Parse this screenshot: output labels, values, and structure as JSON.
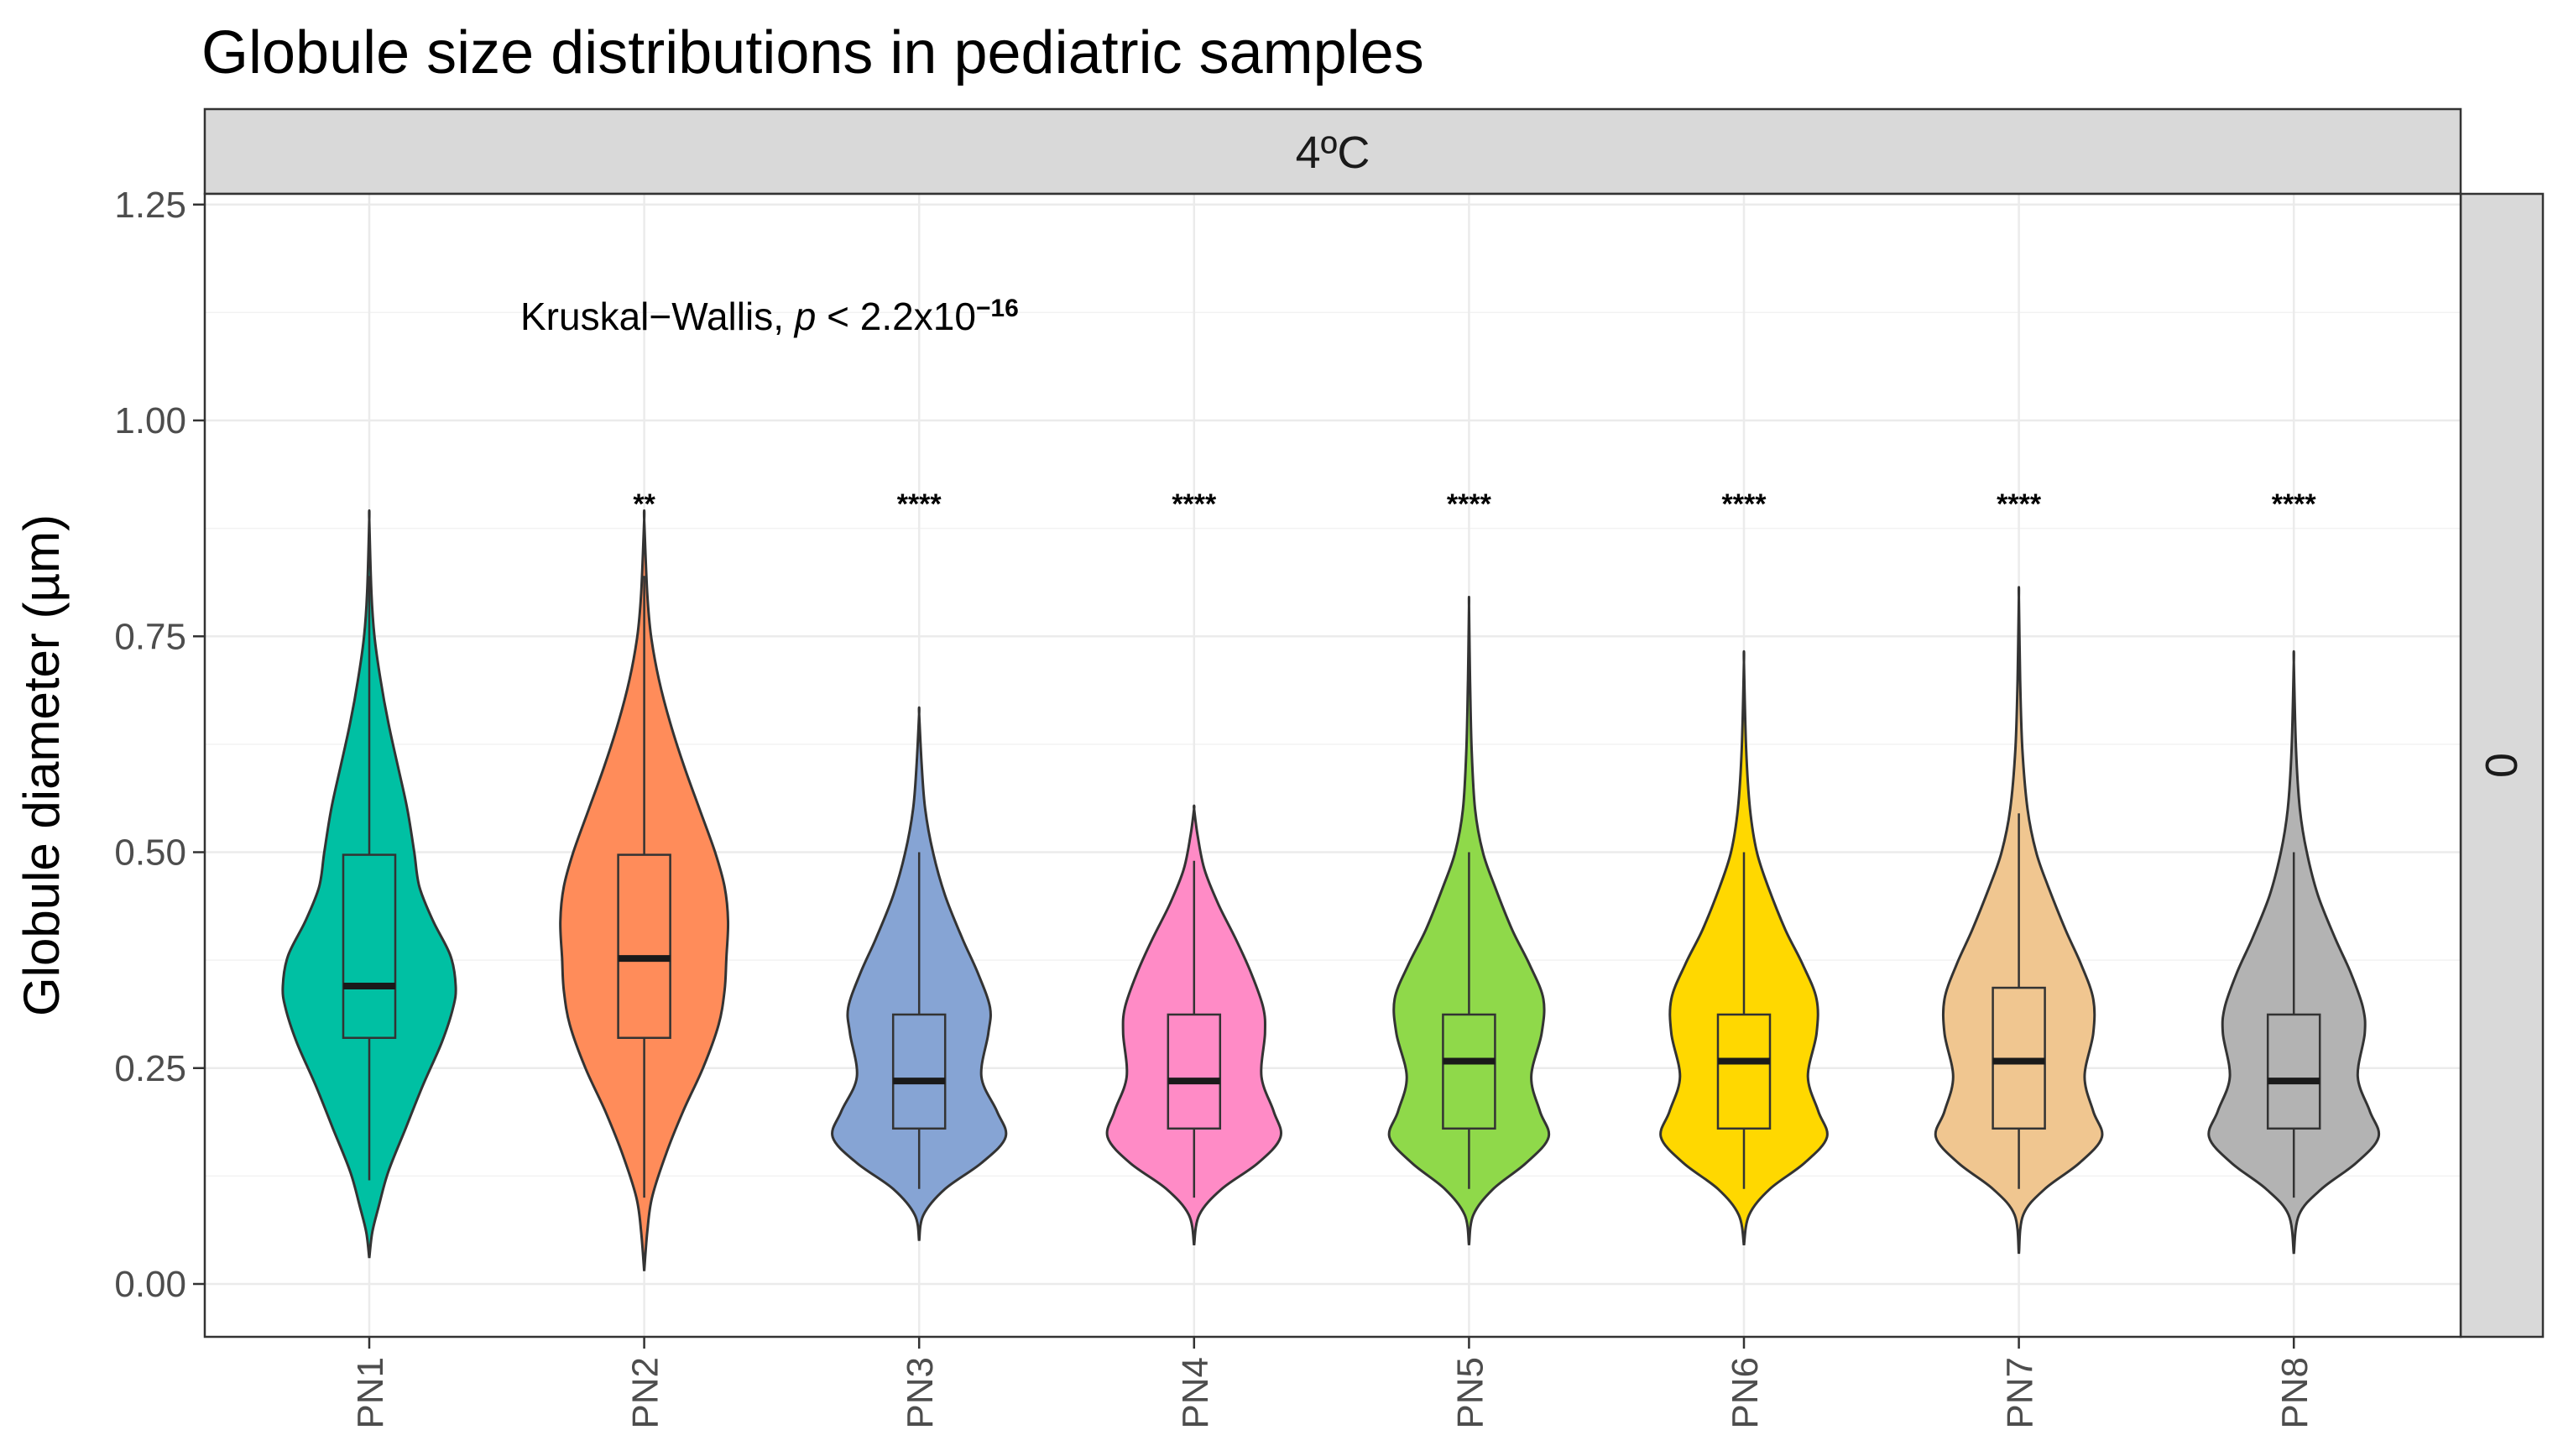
{
  "chart_data": {
    "type": "violin",
    "title": "Globule size distributions in pediatric samples",
    "ylabel": "Globule diameter (µm)",
    "xlabel": "",
    "ylim": [
      -0.055,
      1.25
    ],
    "yticks": [
      0.0,
      0.25,
      0.5,
      0.75,
      1.0,
      1.25
    ],
    "ytick_labels": [
      "0.00",
      "0.25",
      "0.50",
      "0.75",
      "1.00",
      "1.25"
    ],
    "facet_top": "4ºC",
    "facet_right": "0",
    "annotation": {
      "prefix": "Kruskal−Wallis, ",
      "p_symbol": "p",
      "middle": " < 2.2x10",
      "exponent": "−16"
    },
    "categories": [
      "PN1",
      "PN2",
      "PN3",
      "PN4",
      "PN5",
      "PN6",
      "PN7",
      "PN8"
    ],
    "series": [
      {
        "name": "PN1",
        "color": "#00C0A3",
        "significance": "",
        "min": 0.03,
        "max": 0.885,
        "box_low": 0.285,
        "median": 0.345,
        "box_high": 0.497,
        "whisker_low": 0.12,
        "whisker_high": 0.82,
        "profile": [
          [
            0.03,
            0.0
          ],
          [
            0.06,
            0.035
          ],
          [
            0.09,
            0.11
          ],
          [
            0.13,
            0.22
          ],
          [
            0.18,
            0.42
          ],
          [
            0.23,
            0.62
          ],
          [
            0.28,
            0.84
          ],
          [
            0.32,
            0.97
          ],
          [
            0.345,
            1.0
          ],
          [
            0.38,
            0.94
          ],
          [
            0.42,
            0.74
          ],
          [
            0.46,
            0.58
          ],
          [
            0.5,
            0.52
          ],
          [
            0.55,
            0.44
          ],
          [
            0.6,
            0.33
          ],
          [
            0.65,
            0.22
          ],
          [
            0.7,
            0.13
          ],
          [
            0.75,
            0.06
          ],
          [
            0.8,
            0.025
          ],
          [
            0.885,
            0.0
          ]
        ]
      },
      {
        "name": "PN2",
        "color": "#FF8C5A",
        "significance": "**",
        "min": 0.015,
        "max": 0.885,
        "box_low": 0.285,
        "median": 0.377,
        "box_high": 0.497,
        "whisker_low": 0.1,
        "whisker_high": 0.82,
        "profile": [
          [
            0.015,
            0.0
          ],
          [
            0.06,
            0.035
          ],
          [
            0.1,
            0.09
          ],
          [
            0.15,
            0.25
          ],
          [
            0.2,
            0.45
          ],
          [
            0.25,
            0.68
          ],
          [
            0.3,
            0.86
          ],
          [
            0.34,
            0.93
          ],
          [
            0.377,
            0.95
          ],
          [
            0.42,
            0.97
          ],
          [
            0.46,
            0.93
          ],
          [
            0.5,
            0.82
          ],
          [
            0.55,
            0.64
          ],
          [
            0.6,
            0.46
          ],
          [
            0.65,
            0.3
          ],
          [
            0.7,
            0.17
          ],
          [
            0.75,
            0.08
          ],
          [
            0.8,
            0.035
          ],
          [
            0.885,
            0.0
          ]
        ]
      },
      {
        "name": "PN3",
        "color": "#86A4D4",
        "significance": "****",
        "min": 0.05,
        "max": 0.66,
        "box_low": 0.18,
        "median": 0.235,
        "box_high": 0.312,
        "whisker_low": 0.11,
        "whisker_high": 0.5,
        "profile": [
          [
            0.05,
            0.0
          ],
          [
            0.08,
            0.05
          ],
          [
            0.11,
            0.3
          ],
          [
            0.14,
            0.72
          ],
          [
            0.17,
            1.0
          ],
          [
            0.2,
            0.9
          ],
          [
            0.24,
            0.72
          ],
          [
            0.29,
            0.8
          ],
          [
            0.32,
            0.82
          ],
          [
            0.36,
            0.68
          ],
          [
            0.4,
            0.5
          ],
          [
            0.45,
            0.3
          ],
          [
            0.5,
            0.16
          ],
          [
            0.55,
            0.07
          ],
          [
            0.6,
            0.03
          ],
          [
            0.66,
            0.0
          ]
        ]
      },
      {
        "name": "PN4",
        "color": "#FF8BC6",
        "significance": "****",
        "min": 0.045,
        "max": 0.55,
        "box_low": 0.18,
        "median": 0.235,
        "box_high": 0.312,
        "whisker_low": 0.1,
        "whisker_high": 0.49,
        "profile": [
          [
            0.045,
            0.0
          ],
          [
            0.08,
            0.06
          ],
          [
            0.11,
            0.32
          ],
          [
            0.14,
            0.74
          ],
          [
            0.17,
            1.0
          ],
          [
            0.2,
            0.92
          ],
          [
            0.24,
            0.78
          ],
          [
            0.29,
            0.82
          ],
          [
            0.32,
            0.8
          ],
          [
            0.36,
            0.66
          ],
          [
            0.4,
            0.48
          ],
          [
            0.44,
            0.28
          ],
          [
            0.48,
            0.12
          ],
          [
            0.52,
            0.04
          ],
          [
            0.55,
            0.0
          ]
        ]
      },
      {
        "name": "PN5",
        "color": "#8FD94A",
        "significance": "****",
        "min": 0.045,
        "max": 0.785,
        "box_low": 0.18,
        "median": 0.258,
        "box_high": 0.312,
        "whisker_low": 0.11,
        "whisker_high": 0.5,
        "profile": [
          [
            0.045,
            0.0
          ],
          [
            0.08,
            0.05
          ],
          [
            0.11,
            0.28
          ],
          [
            0.14,
            0.66
          ],
          [
            0.17,
            0.92
          ],
          [
            0.2,
            0.82
          ],
          [
            0.24,
            0.72
          ],
          [
            0.29,
            0.84
          ],
          [
            0.33,
            0.86
          ],
          [
            0.37,
            0.7
          ],
          [
            0.41,
            0.5
          ],
          [
            0.46,
            0.3
          ],
          [
            0.5,
            0.16
          ],
          [
            0.55,
            0.07
          ],
          [
            0.62,
            0.03
          ],
          [
            0.7,
            0.012
          ],
          [
            0.785,
            0.0
          ]
        ]
      },
      {
        "name": "PN6",
        "color": "#FFD800",
        "significance": "****",
        "min": 0.045,
        "max": 0.72,
        "box_low": 0.18,
        "median": 0.258,
        "box_high": 0.312,
        "whisker_low": 0.11,
        "whisker_high": 0.5,
        "profile": [
          [
            0.045,
            0.0
          ],
          [
            0.08,
            0.06
          ],
          [
            0.11,
            0.3
          ],
          [
            0.14,
            0.7
          ],
          [
            0.17,
            0.96
          ],
          [
            0.2,
            0.86
          ],
          [
            0.24,
            0.74
          ],
          [
            0.29,
            0.84
          ],
          [
            0.33,
            0.84
          ],
          [
            0.37,
            0.68
          ],
          [
            0.41,
            0.48
          ],
          [
            0.46,
            0.28
          ],
          [
            0.5,
            0.15
          ],
          [
            0.55,
            0.07
          ],
          [
            0.62,
            0.025
          ],
          [
            0.72,
            0.0
          ]
        ]
      },
      {
        "name": "PN7",
        "color": "#F0C690",
        "significance": "****",
        "min": 0.035,
        "max": 0.795,
        "box_low": 0.18,
        "median": 0.258,
        "box_high": 0.343,
        "whisker_low": 0.11,
        "whisker_high": 0.545,
        "profile": [
          [
            0.035,
            0.0
          ],
          [
            0.08,
            0.05
          ],
          [
            0.11,
            0.3
          ],
          [
            0.14,
            0.7
          ],
          [
            0.17,
            0.96
          ],
          [
            0.2,
            0.86
          ],
          [
            0.24,
            0.76
          ],
          [
            0.29,
            0.86
          ],
          [
            0.33,
            0.86
          ],
          [
            0.37,
            0.72
          ],
          [
            0.41,
            0.54
          ],
          [
            0.46,
            0.34
          ],
          [
            0.5,
            0.2
          ],
          [
            0.55,
            0.1
          ],
          [
            0.62,
            0.04
          ],
          [
            0.7,
            0.015
          ],
          [
            0.795,
            0.0
          ]
        ]
      },
      {
        "name": "PN8",
        "color": "#B3B3B3",
        "significance": "****",
        "min": 0.035,
        "max": 0.72,
        "box_low": 0.18,
        "median": 0.235,
        "box_high": 0.312,
        "whisker_low": 0.1,
        "whisker_high": 0.5,
        "profile": [
          [
            0.035,
            0.0
          ],
          [
            0.08,
            0.06
          ],
          [
            0.11,
            0.32
          ],
          [
            0.14,
            0.72
          ],
          [
            0.17,
            0.98
          ],
          [
            0.2,
            0.88
          ],
          [
            0.24,
            0.74
          ],
          [
            0.29,
            0.82
          ],
          [
            0.32,
            0.8
          ],
          [
            0.36,
            0.66
          ],
          [
            0.4,
            0.48
          ],
          [
            0.45,
            0.28
          ],
          [
            0.5,
            0.15
          ],
          [
            0.55,
            0.07
          ],
          [
            0.62,
            0.025
          ],
          [
            0.72,
            0.0
          ]
        ]
      }
    ]
  }
}
